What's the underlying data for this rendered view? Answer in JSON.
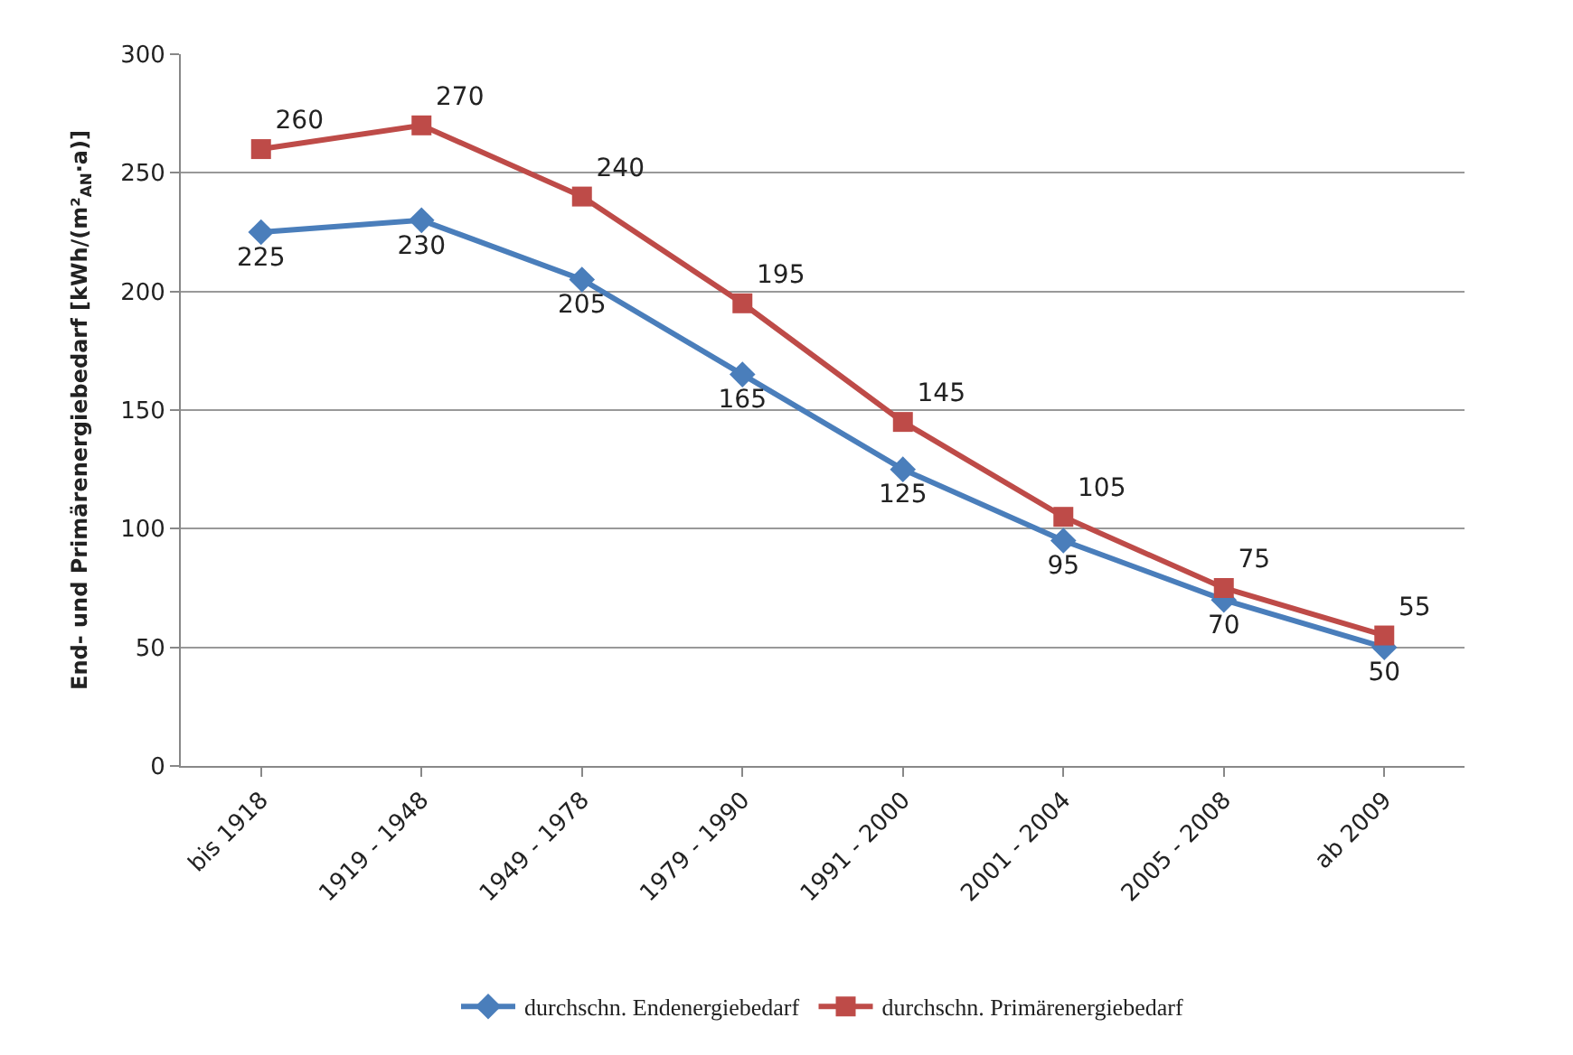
{
  "chart_data": {
    "type": "line",
    "ylabel": "End- und Primärenergiebedarf [kWh/(m²$_{AN}$·a)]",
    "categories": [
      "bis 1918",
      "1919 - 1948",
      "1949 - 1978",
      "1979 - 1990",
      "1991 - 2000",
      "2001 - 2004",
      "2005 - 2008",
      "ab 2009"
    ],
    "series": [
      {
        "name": "durchschn. Endenergiebedarf",
        "color": "#4a7ebb",
        "marker": "diamond",
        "values": [
          225,
          230,
          205,
          165,
          125,
          95,
          70,
          50
        ]
      },
      {
        "name": "durchschn. Primärenergiebedarf",
        "color": "#be4b48",
        "marker": "square",
        "values": [
          260,
          270,
          240,
          195,
          145,
          105,
          75,
          55
        ]
      }
    ],
    "ylim": [
      0,
      300
    ],
    "yticks": [
      0,
      50,
      100,
      150,
      200,
      250,
      300
    ],
    "grid": "y",
    "legend": "bottom",
    "data_labels": true,
    "line_style": "solid"
  }
}
